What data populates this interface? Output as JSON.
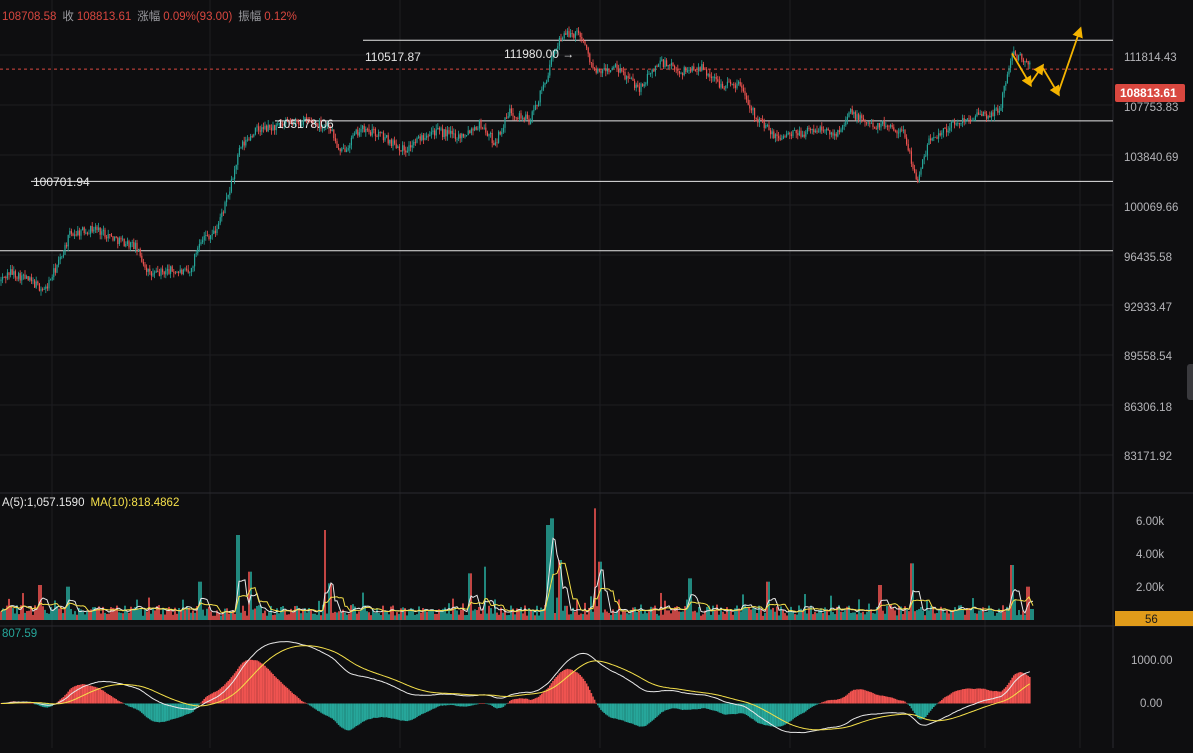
{
  "header": {
    "open_value": "108708.58",
    "close_label": "收",
    "close_value": "108813.61",
    "change_label": "涨幅",
    "change_value": "0.09%(93.00)",
    "amplitude_label": "振幅",
    "amplitude_value": "0.12%"
  },
  "volume_header": {
    "ma5_text": "A(5):1,057.1590",
    "ma10_text": "MA(10):818.4862"
  },
  "indicator_header": {
    "value_text": "807.59"
  },
  "price_axis": {
    "ticks": [
      "111814.43",
      "107753.83",
      "103840.69",
      "100069.66",
      "96435.58",
      "92933.47",
      "89558.54",
      "86306.18",
      "83171.92"
    ],
    "current_price": "108813.61"
  },
  "volume_axis": {
    "ticks": [
      "6.00k",
      "4.00k",
      "2.00k"
    ],
    "current_volume": "56"
  },
  "indicator_axis": {
    "ticks": [
      "1000.00",
      "0.00"
    ]
  },
  "annotations": {
    "level_100701": "100701.94",
    "level_105178": "105178.06",
    "level_110517": "110517.87",
    "high_111980": "111980.00 →"
  },
  "colors": {
    "up": "#26a69a",
    "down": "#ef5350",
    "ma_white": "#e8e8e8",
    "ma_yellow": "#f5e04a",
    "current_price_bg": "#d9473f",
    "current_volume_bg": "#e09b1a",
    "projection": "#f5b400",
    "background": "#0e0e10"
  },
  "chart_data": {
    "type": "candlestick",
    "y_scale": "log",
    "ylim": [
      81500,
      113500
    ],
    "path_anchors": [
      [
        0,
        94000
      ],
      [
        10,
        94600
      ],
      [
        25,
        94200
      ],
      [
        45,
        93400
      ],
      [
        60,
        95400
      ],
      [
        70,
        97100
      ],
      [
        95,
        97500
      ],
      [
        115,
        96800
      ],
      [
        135,
        96300
      ],
      [
        150,
        94400
      ],
      [
        170,
        94700
      ],
      [
        190,
        94500
      ],
      [
        200,
        96800
      ],
      [
        215,
        97200
      ],
      [
        228,
        99600
      ],
      [
        240,
        103000
      ],
      [
        255,
        104300
      ],
      [
        280,
        104600
      ],
      [
        305,
        105000
      ],
      [
        330,
        104600
      ],
      [
        340,
        102600
      ],
      [
        360,
        104400
      ],
      [
        380,
        104000
      ],
      [
        405,
        102900
      ],
      [
        430,
        104300
      ],
      [
        460,
        103900
      ],
      [
        480,
        104800
      ],
      [
        495,
        103400
      ],
      [
        510,
        105700
      ],
      [
        530,
        105000
      ],
      [
        545,
        107800
      ],
      [
        560,
        111300
      ],
      [
        580,
        111600
      ],
      [
        595,
        108500
      ],
      [
        615,
        108900
      ],
      [
        640,
        107400
      ],
      [
        660,
        109400
      ],
      [
        680,
        108600
      ],
      [
        700,
        109000
      ],
      [
        720,
        107700
      ],
      [
        740,
        107700
      ],
      [
        755,
        105400
      ],
      [
        775,
        103800
      ],
      [
        800,
        104100
      ],
      [
        820,
        104400
      ],
      [
        835,
        104000
      ],
      [
        850,
        105600
      ],
      [
        870,
        104700
      ],
      [
        890,
        104700
      ],
      [
        905,
        104000
      ],
      [
        917,
        100600
      ],
      [
        930,
        103700
      ],
      [
        950,
        104600
      ],
      [
        970,
        105300
      ],
      [
        990,
        105400
      ],
      [
        1000,
        105900
      ],
      [
        1012,
        110000
      ],
      [
        1030,
        109200
      ]
    ],
    "horizontal_levels": [
      111000,
      105000,
      100700,
      96000
    ],
    "projection_waypoints": [
      [
        1012,
        110000
      ],
      [
        1030,
        107700
      ],
      [
        1042,
        109000
      ],
      [
        1058,
        107000
      ],
      [
        1080,
        111800
      ]
    ],
    "volume_max": 6600,
    "indicator_range": [
      -850,
      1300
    ]
  }
}
